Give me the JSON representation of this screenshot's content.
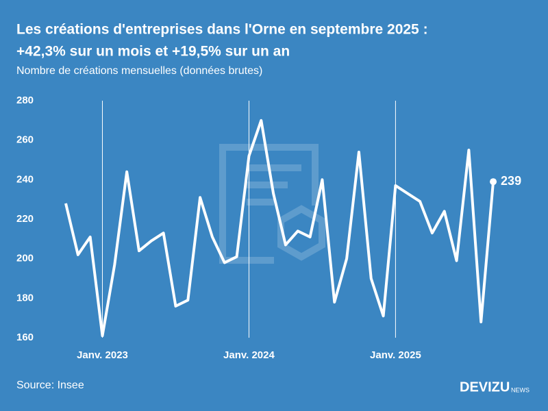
{
  "chart_data": {
    "type": "line",
    "title": "Les créations d'entreprises dans l'Orne en septembre 2025 :",
    "title_line2": "+42,3% sur un mois et +19,5% sur un an",
    "subtitle": "Nombre de créations mensuelles (données brutes)",
    "source": "Source: Insee",
    "brand": "DEVIZU",
    "brand_suffix": "NEWS",
    "categories": [
      null,
      null,
      null,
      "Janv. 2023",
      null,
      null,
      null,
      null,
      null,
      null,
      null,
      null,
      null,
      null,
      null,
      "Janv. 2024",
      null,
      null,
      null,
      null,
      null,
      null,
      null,
      null,
      null,
      null,
      null,
      "Janv. 2025",
      null,
      null,
      null,
      null,
      null,
      null,
      null,
      null
    ],
    "series": [
      {
        "name": "Créations",
        "color": "#ffffff",
        "values": [
          228,
          202,
          211,
          161,
          197,
          244,
          204,
          209,
          213,
          176,
          179,
          231,
          211,
          198,
          201,
          252,
          270,
          233,
          207,
          214,
          211,
          240,
          178,
          200,
          254,
          190,
          171,
          237,
          233,
          229,
          213,
          224,
          199,
          255,
          168,
          239
        ]
      }
    ],
    "ylim": [
      160,
      280
    ],
    "yticks": [
      160,
      180,
      200,
      220,
      240,
      260,
      280
    ],
    "grid": true
  }
}
